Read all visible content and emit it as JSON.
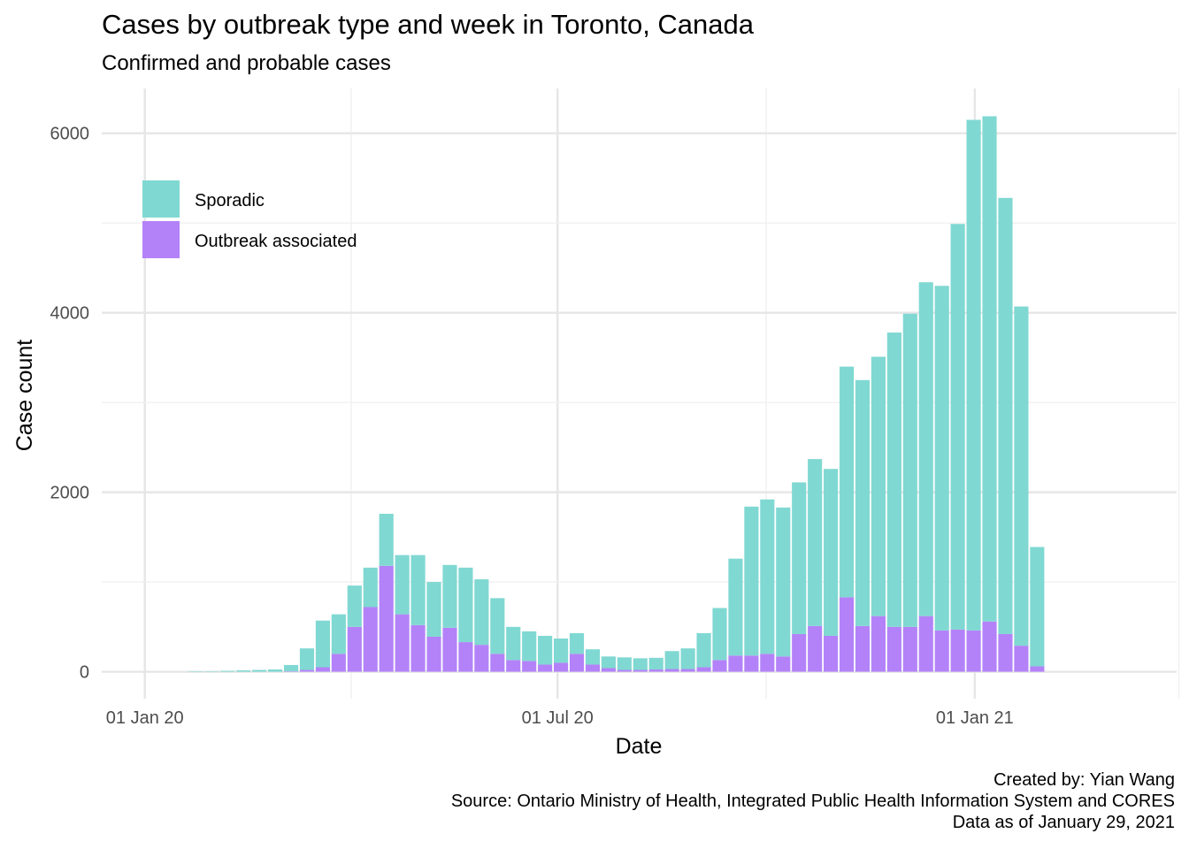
{
  "title": "Cases by outbreak type and week in Toronto, Canada",
  "subtitle": "Confirmed and probable cases",
  "caption": {
    "line1": "Created by: Yian Wang",
    "line2": "Source: Ontario Ministry of Health, Integrated Public Health Information System and CORES",
    "line3": "Data as of January 29, 2021"
  },
  "colors": {
    "sporadic": "#80d8d2",
    "outbreak": "#b382f8",
    "grid_major": "#e6e6e6",
    "grid_minor": "#f0f0f0",
    "tick_text": "#4d4d4d"
  },
  "chart_data": {
    "type": "bar",
    "stacked": true,
    "xlabel": "Date",
    "ylabel": "Case count",
    "x_ticks": [
      "01 Jan 20",
      "01 Jul 20",
      "01 Jan 21"
    ],
    "y_ticks": [
      0,
      2000,
      4000,
      6000
    ],
    "ylim": [
      -300,
      6500
    ],
    "xlim": [
      "2019-12-13",
      "2021-03-31"
    ],
    "grid": true,
    "legend_position": "top-left",
    "categories": [
      "2020-01-20",
      "2020-01-27",
      "2020-02-03",
      "2020-02-10",
      "2020-02-17",
      "2020-02-24",
      "2020-03-02",
      "2020-03-09",
      "2020-03-16",
      "2020-03-23",
      "2020-03-30",
      "2020-04-06",
      "2020-04-13",
      "2020-04-20",
      "2020-04-27",
      "2020-05-04",
      "2020-05-11",
      "2020-05-18",
      "2020-05-25",
      "2020-06-01",
      "2020-06-08",
      "2020-06-15",
      "2020-06-22",
      "2020-06-29",
      "2020-07-06",
      "2020-07-13",
      "2020-07-20",
      "2020-07-27",
      "2020-08-03",
      "2020-08-10",
      "2020-08-17",
      "2020-08-24",
      "2020-08-31",
      "2020-09-07",
      "2020-09-14",
      "2020-09-21",
      "2020-09-28",
      "2020-10-05",
      "2020-10-12",
      "2020-10-19",
      "2020-10-26",
      "2020-11-02",
      "2020-11-09",
      "2020-11-16",
      "2020-11-23",
      "2020-11-30",
      "2020-12-07",
      "2020-12-14",
      "2020-12-21",
      "2020-12-28",
      "2021-01-04",
      "2021-01-11",
      "2021-01-18",
      "2021-01-25"
    ],
    "series": [
      {
        "name": "Outbreak associated",
        "values": [
          0,
          0,
          0,
          0,
          0,
          0,
          5,
          20,
          50,
          200,
          500,
          720,
          1180,
          640,
          520,
          390,
          490,
          330,
          300,
          200,
          130,
          120,
          80,
          100,
          200,
          80,
          40,
          20,
          20,
          25,
          30,
          30,
          50,
          130,
          180,
          180,
          200,
          170,
          420,
          510,
          400,
          830,
          510,
          620,
          500,
          500,
          620,
          460,
          470,
          460,
          560,
          420,
          290,
          60
        ]
      },
      {
        "name": "Sporadic",
        "values": [
          5,
          5,
          10,
          15,
          20,
          25,
          70,
          240,
          520,
          440,
          460,
          440,
          580,
          660,
          780,
          610,
          700,
          830,
          730,
          620,
          370,
          330,
          320,
          270,
          230,
          170,
          130,
          140,
          130,
          130,
          200,
          230,
          380,
          580,
          1080,
          1660,
          1720,
          1660,
          1690,
          1860,
          1860,
          2570,
          2740,
          2890,
          3280,
          3490,
          3720,
          3840,
          4520,
          5690,
          5630,
          4860,
          3780,
          1330
        ]
      }
    ]
  }
}
